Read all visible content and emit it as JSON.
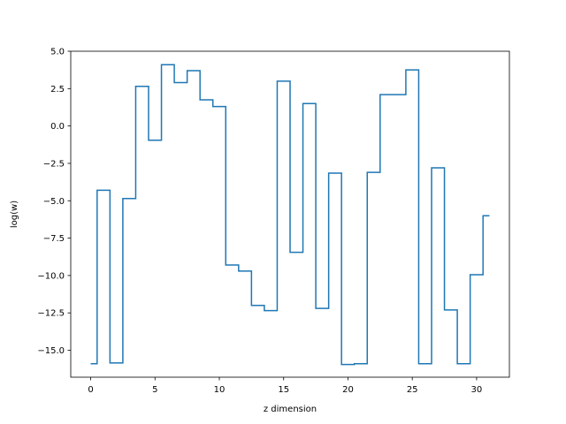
{
  "chart_data": {
    "type": "line",
    "drawstyle": "steps-mid",
    "title": "",
    "xlabel": "z dimension",
    "ylabel": "log(w)",
    "xlim": [
      -1.55,
      32.55
    ],
    "ylim": [
      -16.8,
      5.0
    ],
    "x_ticks": [
      0,
      5,
      10,
      15,
      20,
      25,
      30
    ],
    "y_ticks": [
      -15.0,
      -12.5,
      -10.0,
      -7.5,
      -5.0,
      -2.5,
      0.0,
      2.5,
      5.0
    ],
    "x_tick_labels": [
      "0",
      "5",
      "10",
      "15",
      "20",
      "25",
      "30"
    ],
    "y_tick_labels": [
      "−15.0",
      "−12.5",
      "−10.0",
      "−7.5",
      "−5.0",
      "−2.5",
      "0.0",
      "2.5",
      "5.0"
    ],
    "grid": false,
    "series": [
      {
        "color": "#1f77b4",
        "x": [
          0,
          1,
          2,
          3,
          4,
          5,
          6,
          7,
          8,
          9,
          10,
          11,
          12,
          13,
          14,
          15,
          16,
          17,
          18,
          19,
          20,
          21,
          22,
          23,
          24,
          25,
          26,
          27,
          28,
          29,
          30,
          31
        ],
        "y": [
          -15.9,
          -4.3,
          -15.85,
          -4.85,
          2.65,
          -0.95,
          4.1,
          2.9,
          3.7,
          1.75,
          1.3,
          -9.3,
          -9.7,
          -12.0,
          -12.35,
          3.0,
          -8.45,
          1.5,
          -12.2,
          -3.15,
          -15.95,
          -15.9,
          -3.1,
          2.1,
          2.1,
          3.75,
          -15.9,
          -2.8,
          -12.3,
          -15.9,
          -9.95,
          -6.0
        ]
      }
    ]
  }
}
